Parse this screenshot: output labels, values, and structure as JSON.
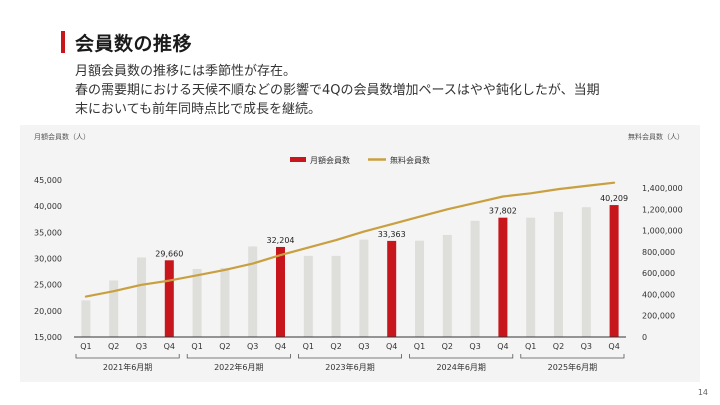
{
  "page": {
    "title": "会員数の推移",
    "desc_lines": [
      "月額会員数の推移には季節性が存在。",
      "春の需要期における天候不順などの影響で4Qの会員数増加ペースはやや鈍化したが、当期",
      "末においても前年同時点比で成長を継続。"
    ],
    "page_number": "14"
  },
  "colors": {
    "accent": "#c8161d",
    "bar_normal": "#dededb",
    "line": "#c9a040"
  },
  "chart_data": {
    "type": "bar",
    "ylabel": "月額会員数（人）",
    "y2label": "無料会員数（人）",
    "legend": [
      "月額会員数",
      "無料会員数"
    ],
    "legend_position": "top-center",
    "ylim": [
      15000,
      45000
    ],
    "yticks": [
      15000,
      20000,
      25000,
      30000,
      35000,
      40000,
      45000
    ],
    "y2lim": [
      0,
      1400000
    ],
    "y2ticks": [
      0,
      200000,
      400000,
      600000,
      800000,
      1000000,
      1200000,
      1400000
    ],
    "categories": [
      "Q1",
      "Q2",
      "Q3",
      "Q4",
      "Q1",
      "Q2",
      "Q3",
      "Q4",
      "Q1",
      "Q2",
      "Q3",
      "Q4",
      "Q1",
      "Q2",
      "Q3",
      "Q4",
      "Q1",
      "Q2",
      "Q3",
      "Q4"
    ],
    "groups": [
      "2021年6月期",
      "2022年6月期",
      "2023年6月期",
      "2024年6月期",
      "2025年6月期"
    ],
    "series": [
      {
        "name": "月額会員数",
        "type": "bar",
        "values": [
          22000,
          25800,
          30200,
          29660,
          28000,
          28200,
          32300,
          32204,
          30500,
          30500,
          33600,
          33363,
          33400,
          34500,
          37200,
          37802,
          37800,
          38900,
          39800,
          40209
        ],
        "highlight_indices": [
          3,
          7,
          11,
          15,
          19
        ]
      },
      {
        "name": "無料会員数",
        "type": "line",
        "axis": "right",
        "values": [
          380000,
          430000,
          490000,
          530000,
          580000,
          630000,
          690000,
          770000,
          840000,
          910000,
          990000,
          1060000,
          1130000,
          1200000,
          1260000,
          1320000,
          1350000,
          1390000,
          1420000,
          1450000
        ]
      }
    ],
    "data_labels": [
      {
        "index": 3,
        "text": "29,660"
      },
      {
        "index": 7,
        "text": "32,204"
      },
      {
        "index": 11,
        "text": "33,363"
      },
      {
        "index": 15,
        "text": "37,802"
      },
      {
        "index": 19,
        "text": "40,209"
      }
    ],
    "grid": false
  }
}
